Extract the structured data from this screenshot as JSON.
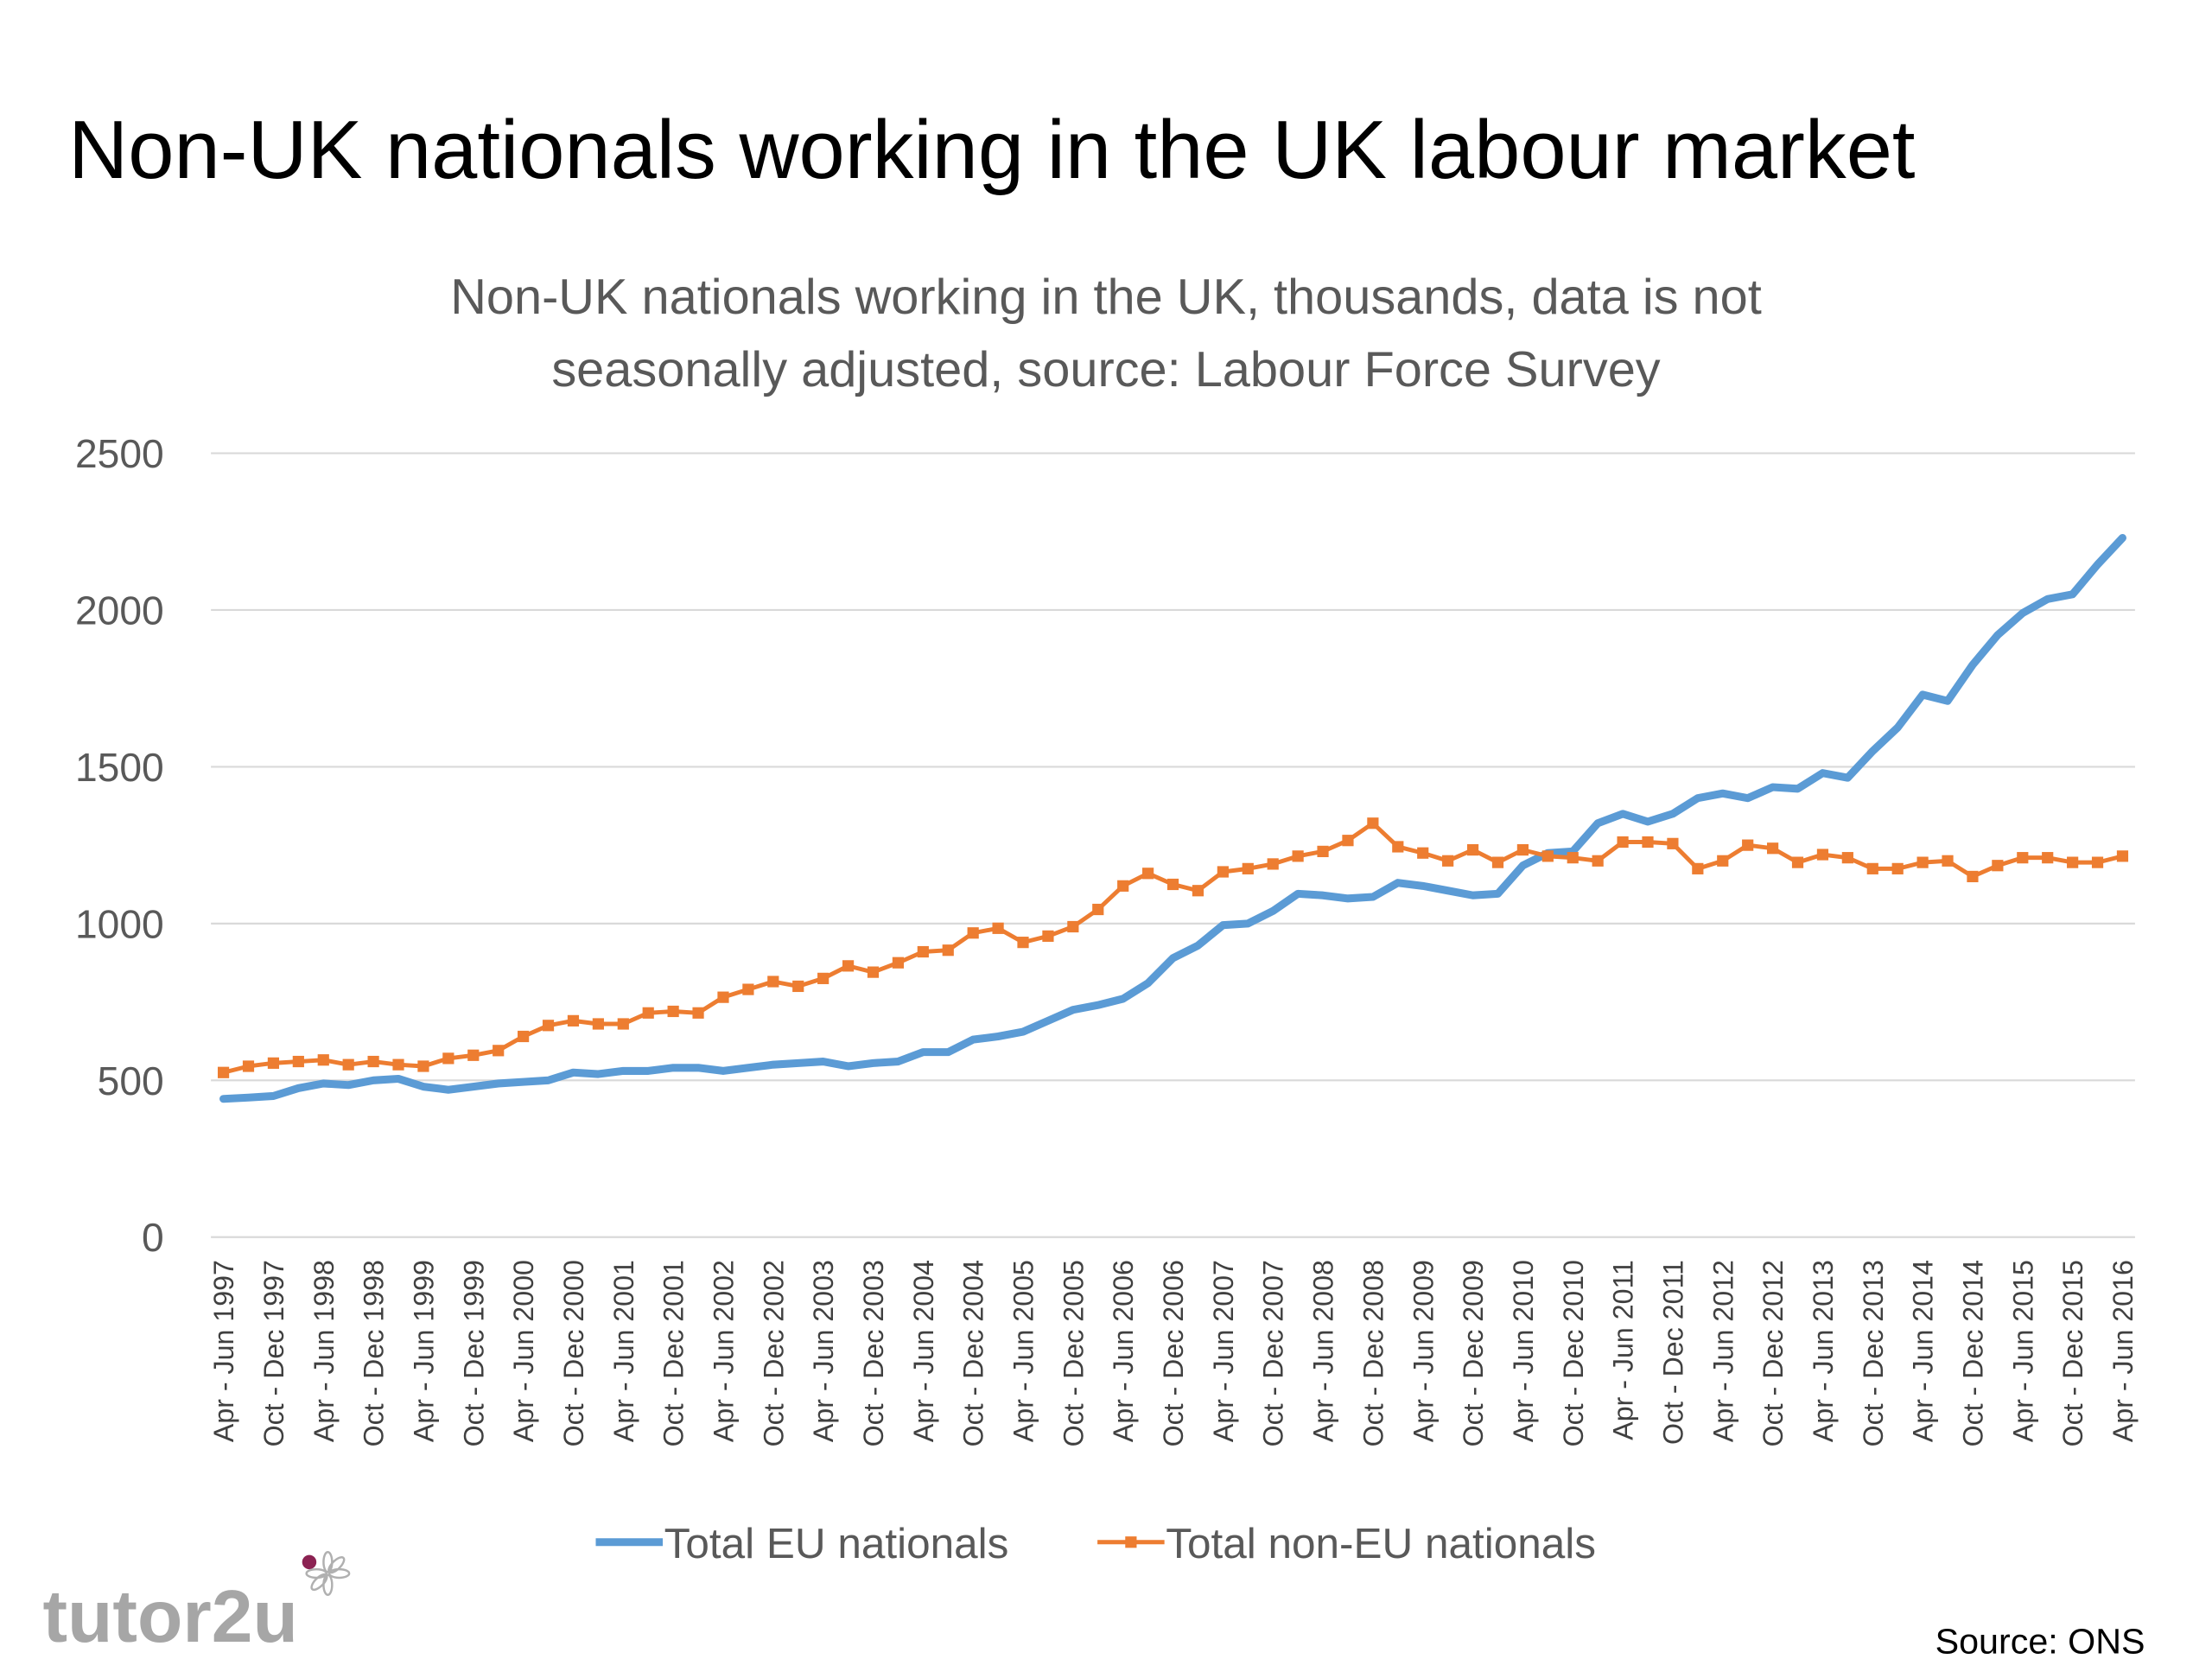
{
  "slide": {
    "title": "Non-UK nationals working in the UK labour market",
    "logo": "tutor2u",
    "source": "Source: ONS"
  },
  "chart_data": {
    "type": "line",
    "title": [
      "Non-UK nationals working in the UK, thousands, data is not",
      "seasonally adjusted, source: Labour Force Survey"
    ],
    "categories": [
      "Apr - Jun 1997",
      null,
      "Oct - Dec 1997",
      null,
      "Apr - Jun 1998",
      null,
      "Oct - Dec 1998",
      null,
      "Apr - Jun 1999",
      null,
      "Oct - Dec 1999",
      null,
      "Apr - Jun 2000",
      null,
      "Oct - Dec 2000",
      null,
      "Apr - Jun 2001",
      null,
      "Oct - Dec 2001",
      null,
      "Apr - Jun 2002",
      null,
      "Oct - Dec 2002",
      null,
      "Apr - Jun 2003",
      null,
      "Oct - Dec 2003",
      null,
      "Apr - Jun 2004",
      null,
      "Oct - Dec 2004",
      null,
      "Apr - Jun 2005",
      null,
      "Oct - Dec 2005",
      null,
      "Apr - Jun 2006",
      null,
      "Oct - Dec 2006",
      null,
      "Apr - Jun 2007",
      null,
      "Oct - Dec 2007",
      null,
      "Apr - Jun 2008",
      null,
      "Oct - Dec 2008",
      null,
      "Apr - Jun 2009",
      null,
      "Oct - Dec 2009",
      null,
      "Apr - Jun 2010",
      null,
      "Oct - Dec 2010",
      null,
      "Apr - Jun 2011",
      null,
      "Oct - Dec 2011",
      null,
      "Apr - Jun 2012",
      null,
      "Oct - Dec 2012",
      null,
      "Apr - Jun 2013",
      null,
      "Oct - Dec 2013",
      null,
      "Apr - Jun 2014",
      null,
      "Oct - Dec 2014",
      null,
      "Apr - Jun 2015",
      null,
      "Oct - Dec 2015",
      null,
      "Apr - Jun 2016"
    ],
    "series": [
      {
        "name": "Total EU nationals",
        "color": "#5b9bd5",
        "marker": false,
        "values": [
          441,
          445,
          450,
          475,
          490,
          485,
          500,
          505,
          480,
          470,
          480,
          490,
          495,
          500,
          525,
          520,
          530,
          530,
          540,
          540,
          530,
          540,
          550,
          555,
          560,
          545,
          555,
          560,
          590,
          590,
          630,
          640,
          655,
          690,
          725,
          740,
          760,
          810,
          890,
          930,
          995,
          1000,
          1040,
          1095,
          1090,
          1080,
          1085,
          1130,
          1120,
          1105,
          1090,
          1095,
          1185,
          1225,
          1230,
          1320,
          1350,
          1325,
          1350,
          1400,
          1415,
          1400,
          1435,
          1430,
          1480,
          1465,
          1550,
          1625,
          1730,
          1710,
          1825,
          1920,
          1990,
          2035,
          2050,
          2145,
          2230
        ]
      },
      {
        "name": "Total non-EU nationals",
        "color": "#ed7d31",
        "marker": true,
        "values": [
          525,
          545,
          555,
          560,
          565,
          550,
          560,
          550,
          545,
          570,
          580,
          595,
          640,
          675,
          690,
          680,
          680,
          715,
          720,
          715,
          765,
          790,
          815,
          800,
          825,
          865,
          845,
          875,
          910,
          915,
          970,
          985,
          940,
          960,
          990,
          1045,
          1120,
          1160,
          1125,
          1105,
          1165,
          1175,
          1190,
          1215,
          1230,
          1265,
          1320,
          1245,
          1225,
          1200,
          1235,
          1195,
          1235,
          1215,
          1210,
          1200,
          1260,
          1260,
          1255,
          1175,
          1200,
          1250,
          1240,
          1195,
          1220,
          1210,
          1175,
          1175,
          1195,
          1200,
          1150,
          1185,
          1210,
          1210,
          1195,
          1195,
          1215
        ]
      }
    ],
    "ylim": [
      0,
      2500
    ],
    "yticks": [
      0,
      500,
      1000,
      1500,
      2000,
      2500
    ],
    "grid": true,
    "legend": "bottom"
  }
}
